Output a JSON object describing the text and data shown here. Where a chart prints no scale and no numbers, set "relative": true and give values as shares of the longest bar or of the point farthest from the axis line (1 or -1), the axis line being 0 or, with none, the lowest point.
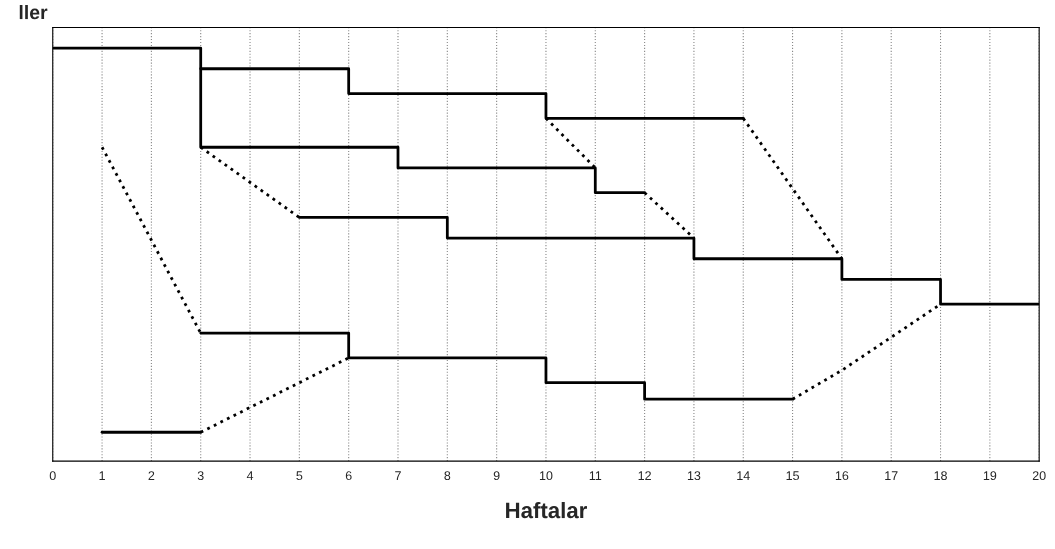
{
  "chart_data": {
    "type": "step",
    "relative": true,
    "xlabel": "Haftalar",
    "ylabel": "ller",
    "xlim": [
      0,
      20
    ],
    "xticks": [
      0,
      1,
      2,
      3,
      4,
      5,
      6,
      7,
      8,
      9,
      10,
      11,
      12,
      13,
      14,
      15,
      16,
      17,
      18,
      19,
      20
    ],
    "grid": "x",
    "marker": "none",
    "line_style": "solid",
    "series": [
      {
        "color": "#000000",
        "x": [
          0,
          3,
          3,
          7,
          11,
          12
        ],
        "values": [
          1.0,
          1.0,
          0.76,
          0.71,
          0.65,
          0.65
        ]
      },
      {
        "color": "#000000",
        "x": [
          3,
          6,
          10,
          14
        ],
        "values": [
          0.95,
          0.89,
          0.83,
          0.83
        ]
      },
      {
        "color": "#000000",
        "x": [
          5,
          8,
          13,
          16,
          18,
          20
        ],
        "values": [
          0.59,
          0.54,
          0.49,
          0.44,
          0.38,
          0.38
        ]
      },
      {
        "color": "#000000",
        "x": [
          3,
          6,
          10,
          12,
          15
        ],
        "values": [
          0.31,
          0.25,
          0.19,
          0.15,
          0.15
        ]
      },
      {
        "color": "#000000",
        "x": [
          1,
          3
        ],
        "values": [
          0.07,
          0.07
        ]
      },
      {
        "type": "line",
        "line_style": "dotted",
        "color": "#000000",
        "x": [
          1,
          3
        ],
        "values": [
          0.76,
          0.31
        ]
      },
      {
        "type": "line",
        "line_style": "dotted",
        "color": "#000000",
        "x": [
          3,
          5
        ],
        "values": [
          0.76,
          0.59
        ]
      },
      {
        "type": "line",
        "line_style": "dotted",
        "color": "#000000",
        "x": [
          3,
          6
        ],
        "values": [
          0.07,
          0.25
        ]
      },
      {
        "type": "line",
        "line_style": "dotted",
        "color": "#000000",
        "x": [
          10,
          11
        ],
        "values": [
          0.83,
          0.71
        ]
      },
      {
        "type": "line",
        "line_style": "dotted",
        "color": "#000000",
        "x": [
          12,
          13
        ],
        "values": [
          0.65,
          0.54
        ]
      },
      {
        "type": "line",
        "line_style": "dotted",
        "color": "#000000",
        "x": [
          14,
          16
        ],
        "values": [
          0.83,
          0.49
        ]
      },
      {
        "type": "line",
        "line_style": "dotted",
        "color": "#000000",
        "x": [
          15,
          16,
          18
        ],
        "values": [
          0.15,
          0.22,
          0.38
        ]
      }
    ]
  }
}
